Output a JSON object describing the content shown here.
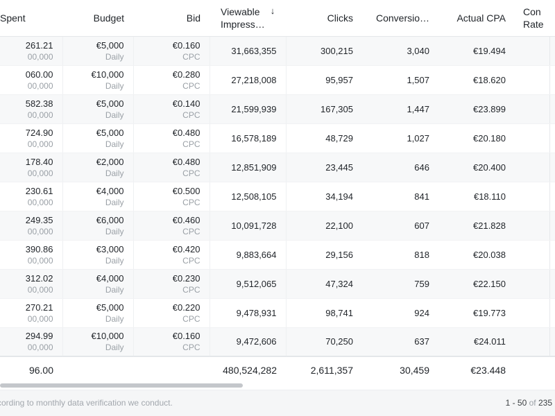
{
  "columns": {
    "spent": "Spent",
    "budget": "Budget",
    "bid": "Bid",
    "impressions_line1": "Viewable",
    "impressions_line2": "Impress…",
    "sort_icon": "↓",
    "clicks": "Clicks",
    "conversions": "Conversio…",
    "actual_cpa": "Actual CPA",
    "conv_rate_line1": "Con",
    "conv_rate_line2": "Rate"
  },
  "rows": [
    {
      "spent": "261.21",
      "spent_sub": "00,000",
      "budget": "€5,000",
      "budget_period": "Daily",
      "bid": "€0.160",
      "bid_type": "CPC",
      "impressions": "31,663,355",
      "clicks": "300,215",
      "conversions": "3,040",
      "actual_cpa": "€19.494"
    },
    {
      "spent": "060.00",
      "spent_sub": "00,000",
      "budget": "€10,000",
      "budget_period": "Daily",
      "bid": "€0.280",
      "bid_type": "CPC",
      "impressions": "27,218,008",
      "clicks": "95,957",
      "conversions": "1,507",
      "actual_cpa": "€18.620"
    },
    {
      "spent": "582.38",
      "spent_sub": "00,000",
      "budget": "€5,000",
      "budget_period": "Daily",
      "bid": "€0.140",
      "bid_type": "CPC",
      "impressions": "21,599,939",
      "clicks": "167,305",
      "conversions": "1,447",
      "actual_cpa": "€23.899"
    },
    {
      "spent": "724.90",
      "spent_sub": "00,000",
      "budget": "€5,000",
      "budget_period": "Daily",
      "bid": "€0.480",
      "bid_type": "CPC",
      "impressions": "16,578,189",
      "clicks": "48,729",
      "conversions": "1,027",
      "actual_cpa": "€20.180"
    },
    {
      "spent": "178.40",
      "spent_sub": "00,000",
      "budget": "€2,000",
      "budget_period": "Daily",
      "bid": "€0.480",
      "bid_type": "CPC",
      "impressions": "12,851,909",
      "clicks": "23,445",
      "conversions": "646",
      "actual_cpa": "€20.400"
    },
    {
      "spent": "230.61",
      "spent_sub": "00,000",
      "budget": "€4,000",
      "budget_period": "Daily",
      "bid": "€0.500",
      "bid_type": "CPC",
      "impressions": "12,508,105",
      "clicks": "34,194",
      "conversions": "841",
      "actual_cpa": "€18.110"
    },
    {
      "spent": "249.35",
      "spent_sub": "00,000",
      "budget": "€6,000",
      "budget_period": "Daily",
      "bid": "€0.460",
      "bid_type": "CPC",
      "impressions": "10,091,728",
      "clicks": "22,100",
      "conversions": "607",
      "actual_cpa": "€21.828"
    },
    {
      "spent": "390.86",
      "spent_sub": "00,000",
      "budget": "€3,000",
      "budget_period": "Daily",
      "bid": "€0.420",
      "bid_type": "CPC",
      "impressions": "9,883,664",
      "clicks": "29,156",
      "conversions": "818",
      "actual_cpa": "€20.038"
    },
    {
      "spent": "312.02",
      "spent_sub": "00,000",
      "budget": "€4,000",
      "budget_period": "Daily",
      "bid": "€0.230",
      "bid_type": "CPC",
      "impressions": "9,512,065",
      "clicks": "47,324",
      "conversions": "759",
      "actual_cpa": "€22.150"
    },
    {
      "spent": "270.21",
      "spent_sub": "00,000",
      "budget": "€5,000",
      "budget_period": "Daily",
      "bid": "€0.220",
      "bid_type": "CPC",
      "impressions": "9,478,931",
      "clicks": "98,741",
      "conversions": "924",
      "actual_cpa": "€19.773"
    },
    {
      "spent": "294.99",
      "spent_sub": "00,000",
      "budget": "€10,000",
      "budget_period": "Daily",
      "bid": "€0.160",
      "bid_type": "CPC",
      "impressions": "9,472,606",
      "clicks": "70,250",
      "conversions": "637",
      "actual_cpa": "€24.011"
    }
  ],
  "totals": {
    "spent": "96.00",
    "impressions": "480,524,282",
    "clicks": "2,611,357",
    "conversions": "30,459",
    "actual_cpa": "€23.448"
  },
  "footer": {
    "note": "cording to monthly data verification we conduct.",
    "range": "1 - 50",
    "of_label": "of",
    "total": "235"
  },
  "icons": {
    "edit": "pencil-icon"
  },
  "colors": {
    "row_alt": "#f7f8f9",
    "muted_text": "#9aa0a6",
    "pencil": "#5f6368"
  }
}
